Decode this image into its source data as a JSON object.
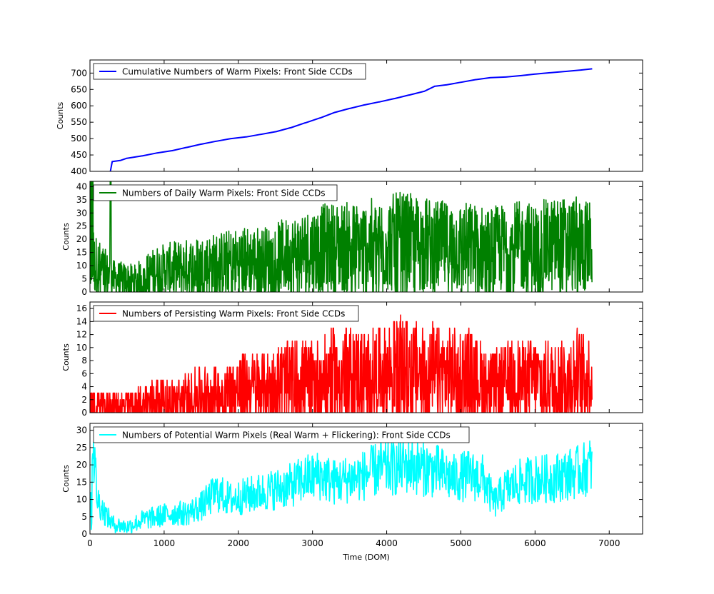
{
  "chart_data": [
    {
      "type": "line",
      "legend": "Cumulative Numbers of Warm Pixels: Front Side CCDs",
      "legend_position": "top-left",
      "ylabel": "Counts",
      "xlabel": "",
      "xlim": [
        0,
        7450
      ],
      "ylim": [
        400,
        740
      ],
      "yticks": [
        400,
        450,
        500,
        550,
        600,
        650,
        700
      ],
      "color": "#0000ff",
      "x": [
        270,
        300,
        400,
        500,
        700,
        900,
        1100,
        1300,
        1500,
        1700,
        1900,
        2100,
        2300,
        2500,
        2700,
        2900,
        3100,
        3300,
        3500,
        3700,
        3900,
        4100,
        4300,
        4500,
        4650,
        4800,
        5000,
        5200,
        5400,
        5600,
        5800,
        6000,
        6200,
        6400,
        6600,
        6770
      ],
      "y": [
        400,
        430,
        433,
        440,
        447,
        456,
        463,
        473,
        483,
        492,
        500,
        505,
        513,
        521,
        533,
        548,
        563,
        580,
        592,
        603,
        612,
        622,
        633,
        644,
        660,
        664,
        672,
        680,
        686,
        688,
        692,
        697,
        701,
        705,
        709,
        713
      ]
    },
    {
      "type": "line",
      "legend": "Numbers of Daily Warm Pixels: Front Side CCDs",
      "legend_position": "top-left",
      "ylabel": "Counts",
      "xlabel": "",
      "xlim": [
        0,
        7450
      ],
      "ylim": [
        0,
        42
      ],
      "yticks": [
        0,
        5,
        10,
        15,
        20,
        25,
        30,
        35,
        40
      ],
      "color": "#008000",
      "x": [
        0,
        300,
        600,
        900,
        1200,
        1500,
        1800,
        2100,
        2400,
        2700,
        3000,
        3300,
        3600,
        3900,
        4200,
        4500,
        4800,
        5100,
        5400,
        5700,
        6000,
        6300,
        6600,
        6770
      ],
      "y": [
        12,
        5,
        4,
        8,
        9,
        10,
        11,
        12,
        12,
        14,
        16,
        17,
        17,
        18,
        19,
        18,
        17,
        17,
        16,
        17,
        17,
        18,
        18,
        17
      ]
    },
    {
      "type": "line",
      "legend": "Numbers of Persisting Warm Pixels: Front Side CCDs",
      "legend_position": "top-left",
      "ylabel": "Counts",
      "xlabel": "",
      "xlim": [
        0,
        7450
      ],
      "ylim": [
        0,
        17
      ],
      "yticks": [
        0,
        2,
        4,
        6,
        8,
        10,
        12,
        14,
        16
      ],
      "color": "#ff0000",
      "x": [
        0,
        300,
        600,
        900,
        1200,
        1500,
        1800,
        2100,
        2400,
        2700,
        3000,
        3300,
        3600,
        3900,
        4200,
        4500,
        4800,
        5100,
        5400,
        5700,
        6000,
        6300,
        6600,
        6770
      ],
      "y": [
        1,
        1,
        1,
        2,
        2,
        3,
        3,
        4,
        4,
        5,
        5,
        6,
        6,
        6,
        7,
        6,
        6,
        6,
        4,
        5,
        5,
        5,
        6,
        5
      ]
    },
    {
      "type": "line",
      "legend": "Numbers of Potential Warm Pixels (Real Warm + Flickering): Front Side CCDs",
      "legend_position": "top-left",
      "ylabel": "Counts",
      "xlabel": "Time (DOM)",
      "xlim": [
        0,
        7450
      ],
      "ylim": [
        0,
        32
      ],
      "yticks": [
        0,
        5,
        10,
        15,
        20,
        25,
        30
      ],
      "xticks": [
        0,
        1000,
        2000,
        3000,
        4000,
        5000,
        6000,
        7000
      ],
      "color": "#00ffff",
      "x": [
        0,
        40,
        100,
        200,
        300,
        500,
        700,
        900,
        1100,
        1300,
        1500,
        1700,
        1900,
        2100,
        2300,
        2500,
        2700,
        2900,
        3100,
        3300,
        3500,
        3700,
        3900,
        4100,
        4300,
        4500,
        4700,
        4900,
        5100,
        5300,
        5450,
        5600,
        5800,
        6000,
        6200,
        6400,
        6600,
        6770
      ],
      "y": [
        20,
        27,
        10,
        6,
        3,
        2,
        4,
        5,
        6,
        6,
        8,
        12,
        10,
        11,
        12,
        13,
        14,
        16,
        17,
        15,
        16,
        17,
        19,
        19,
        20,
        19,
        18,
        16,
        17,
        16,
        9,
        13,
        15,
        16,
        16,
        17,
        18,
        20
      ]
    }
  ]
}
